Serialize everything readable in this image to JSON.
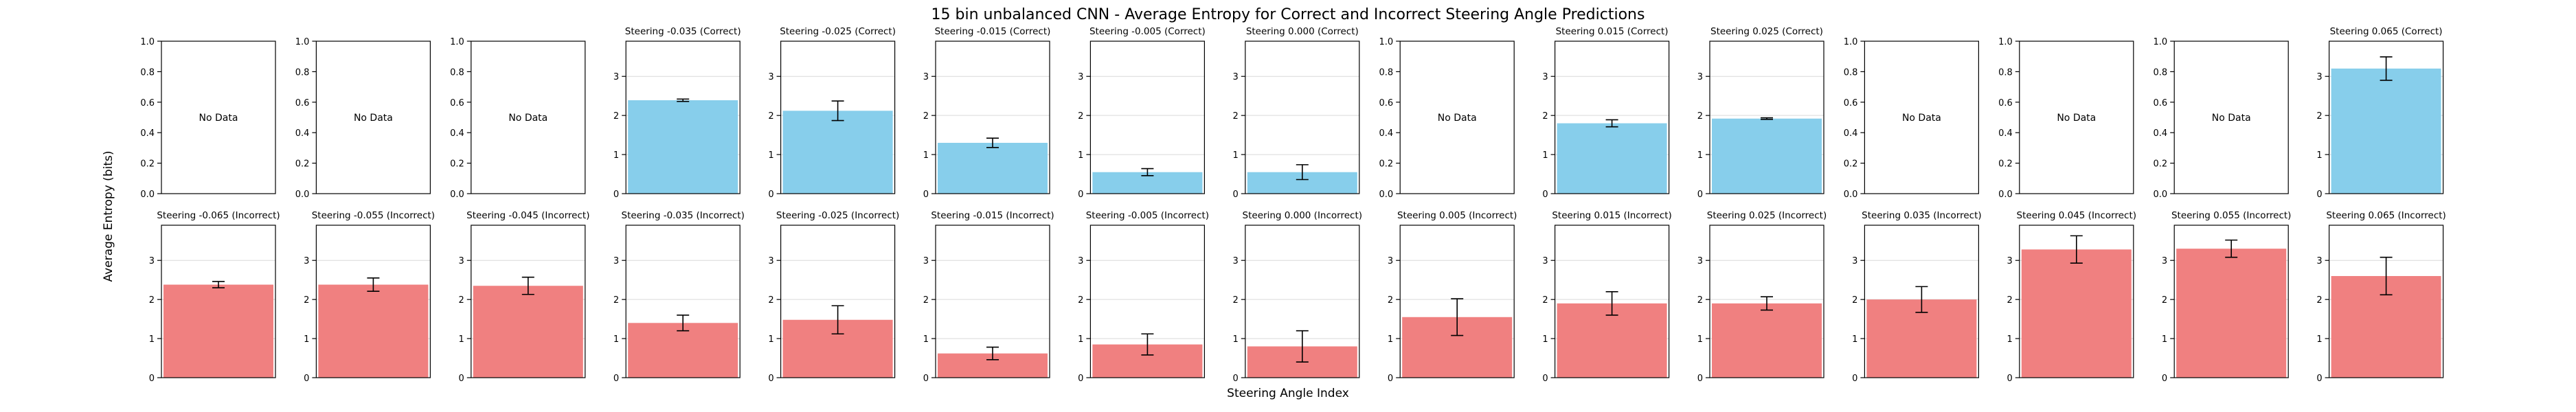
{
  "figure": {
    "title": "15 bin unbalanced CNN - Average Entropy for Correct and Incorrect Steering Angle Predictions",
    "ylabel": "Average Entropy (bits)",
    "xlabel": "Steering Angle Index",
    "no_data_text": "No Data"
  },
  "chart_data": {
    "type": "bar",
    "colors": {
      "correct": "#87ceeb",
      "incorrect": "#f08080"
    },
    "rows": [
      {
        "kind": "correct",
        "panels": [
          {
            "title": "",
            "has_data": false,
            "ylim": [
              0,
              1
            ],
            "yticks": [
              "0.0",
              "0.2",
              "0.4",
              "0.6",
              "0.8",
              "1.0"
            ]
          },
          {
            "title": "",
            "has_data": false,
            "ylim": [
              0,
              1
            ],
            "yticks": [
              "0.0",
              "0.2",
              "0.4",
              "0.6",
              "0.8",
              "1.0"
            ]
          },
          {
            "title": "",
            "has_data": false,
            "ylim": [
              0,
              1
            ],
            "yticks": [
              "0.0",
              "0.2",
              "0.4",
              "0.6",
              "0.8",
              "1.0"
            ]
          },
          {
            "title": "Steering -0.035 (Correct)",
            "has_data": true,
            "value": 2.39,
            "err": 0.03,
            "ylim": [
              0,
              3.9
            ],
            "yticks": [
              "0",
              "1",
              "2",
              "3"
            ]
          },
          {
            "title": "Steering -0.025 (Correct)",
            "has_data": true,
            "value": 2.12,
            "err": 0.25,
            "ylim": [
              0,
              3.9
            ],
            "yticks": [
              "0",
              "1",
              "2",
              "3"
            ]
          },
          {
            "title": "Steering -0.015 (Correct)",
            "has_data": true,
            "value": 1.3,
            "err": 0.12,
            "ylim": [
              0,
              3.9
            ],
            "yticks": [
              "0",
              "1",
              "2",
              "3"
            ]
          },
          {
            "title": "Steering -0.005 (Correct)",
            "has_data": true,
            "value": 0.55,
            "err": 0.09,
            "ylim": [
              0,
              3.9
            ],
            "yticks": [
              "0",
              "1",
              "2",
              "3"
            ]
          },
          {
            "title": "Steering 0.000 (Correct)",
            "has_data": true,
            "value": 0.55,
            "err": 0.19,
            "ylim": [
              0,
              3.9
            ],
            "yticks": [
              "0",
              "1",
              "2",
              "3"
            ]
          },
          {
            "title": "",
            "has_data": false,
            "ylim": [
              0,
              1
            ],
            "yticks": [
              "0.0",
              "0.2",
              "0.4",
              "0.6",
              "0.8",
              "1.0"
            ]
          },
          {
            "title": "Steering 0.015 (Correct)",
            "has_data": true,
            "value": 1.8,
            "err": 0.09,
            "ylim": [
              0,
              3.9
            ],
            "yticks": [
              "0",
              "1",
              "2",
              "3"
            ]
          },
          {
            "title": "Steering 0.025 (Correct)",
            "has_data": true,
            "value": 1.92,
            "err": 0.02,
            "ylim": [
              0,
              3.9
            ],
            "yticks": [
              "0",
              "1",
              "2",
              "3"
            ]
          },
          {
            "title": "",
            "has_data": false,
            "ylim": [
              0,
              1
            ],
            "yticks": [
              "0.0",
              "0.2",
              "0.4",
              "0.6",
              "0.8",
              "1.0"
            ]
          },
          {
            "title": "",
            "has_data": false,
            "ylim": [
              0,
              1
            ],
            "yticks": [
              "0.0",
              "0.2",
              "0.4",
              "0.6",
              "0.8",
              "1.0"
            ]
          },
          {
            "title": "",
            "has_data": false,
            "ylim": [
              0,
              1
            ],
            "yticks": [
              "0.0",
              "0.2",
              "0.4",
              "0.6",
              "0.8",
              "1.0"
            ]
          },
          {
            "title": "Steering 0.065 (Correct)",
            "has_data": true,
            "value": 3.2,
            "err": 0.3,
            "ylim": [
              0,
              3.9
            ],
            "yticks": [
              "0",
              "1",
              "2",
              "3"
            ]
          }
        ]
      },
      {
        "kind": "incorrect",
        "panels": [
          {
            "title": "Steering -0.065 (Incorrect)",
            "has_data": true,
            "value": 2.38,
            "err": 0.08,
            "ylim": [
              0,
              3.9
            ],
            "yticks": [
              "0",
              "1",
              "2",
              "3"
            ]
          },
          {
            "title": "Steering -0.055 (Incorrect)",
            "has_data": true,
            "value": 2.38,
            "err": 0.17,
            "ylim": [
              0,
              3.9
            ],
            "yticks": [
              "0",
              "1",
              "2",
              "3"
            ]
          },
          {
            "title": "Steering -0.045 (Incorrect)",
            "has_data": true,
            "value": 2.35,
            "err": 0.22,
            "ylim": [
              0,
              3.9
            ],
            "yticks": [
              "0",
              "1",
              "2",
              "3"
            ]
          },
          {
            "title": "Steering -0.035 (Incorrect)",
            "has_data": true,
            "value": 1.4,
            "err": 0.2,
            "ylim": [
              0,
              3.9
            ],
            "yticks": [
              "0",
              "1",
              "2",
              "3"
            ]
          },
          {
            "title": "Steering -0.025 (Incorrect)",
            "has_data": true,
            "value": 1.48,
            "err": 0.36,
            "ylim": [
              0,
              3.9
            ],
            "yticks": [
              "0",
              "1",
              "2",
              "3"
            ]
          },
          {
            "title": "Steering -0.015 (Incorrect)",
            "has_data": true,
            "value": 0.62,
            "err": 0.16,
            "ylim": [
              0,
              3.9
            ],
            "yticks": [
              "0",
              "1",
              "2",
              "3"
            ]
          },
          {
            "title": "Steering -0.005 (Incorrect)",
            "has_data": true,
            "value": 0.85,
            "err": 0.27,
            "ylim": [
              0,
              3.9
            ],
            "yticks": [
              "0",
              "1",
              "2",
              "3"
            ]
          },
          {
            "title": "Steering 0.000 (Incorrect)",
            "has_data": true,
            "value": 0.8,
            "err": 0.4,
            "ylim": [
              0,
              3.9
            ],
            "yticks": [
              "0",
              "1",
              "2",
              "3"
            ]
          },
          {
            "title": "Steering 0.005 (Incorrect)",
            "has_data": true,
            "value": 1.55,
            "err": 0.47,
            "ylim": [
              0,
              3.9
            ],
            "yticks": [
              "0",
              "1",
              "2",
              "3"
            ]
          },
          {
            "title": "Steering 0.015 (Incorrect)",
            "has_data": true,
            "value": 1.9,
            "err": 0.3,
            "ylim": [
              0,
              3.9
            ],
            "yticks": [
              "0",
              "1",
              "2",
              "3"
            ]
          },
          {
            "title": "Steering 0.025 (Incorrect)",
            "has_data": true,
            "value": 1.9,
            "err": 0.17,
            "ylim": [
              0,
              3.9
            ],
            "yticks": [
              "0",
              "1",
              "2",
              "3"
            ]
          },
          {
            "title": "Steering 0.035 (Incorrect)",
            "has_data": true,
            "value": 2.0,
            "err": 0.33,
            "ylim": [
              0,
              3.9
            ],
            "yticks": [
              "0",
              "1",
              "2",
              "3"
            ]
          },
          {
            "title": "Steering 0.045 (Incorrect)",
            "has_data": true,
            "value": 3.28,
            "err": 0.35,
            "ylim": [
              0,
              3.9
            ],
            "yticks": [
              "0",
              "1",
              "2",
              "3"
            ]
          },
          {
            "title": "Steering 0.055 (Incorrect)",
            "has_data": true,
            "value": 3.3,
            "err": 0.22,
            "ylim": [
              0,
              3.9
            ],
            "yticks": [
              "0",
              "1",
              "2",
              "3"
            ]
          },
          {
            "title": "Steering 0.065 (Incorrect)",
            "has_data": true,
            "value": 2.6,
            "err": 0.48,
            "ylim": [
              0,
              3.9
            ],
            "yticks": [
              "0",
              "1",
              "2",
              "3"
            ]
          }
        ]
      }
    ],
    "grid": "y-major",
    "legend": "none"
  }
}
